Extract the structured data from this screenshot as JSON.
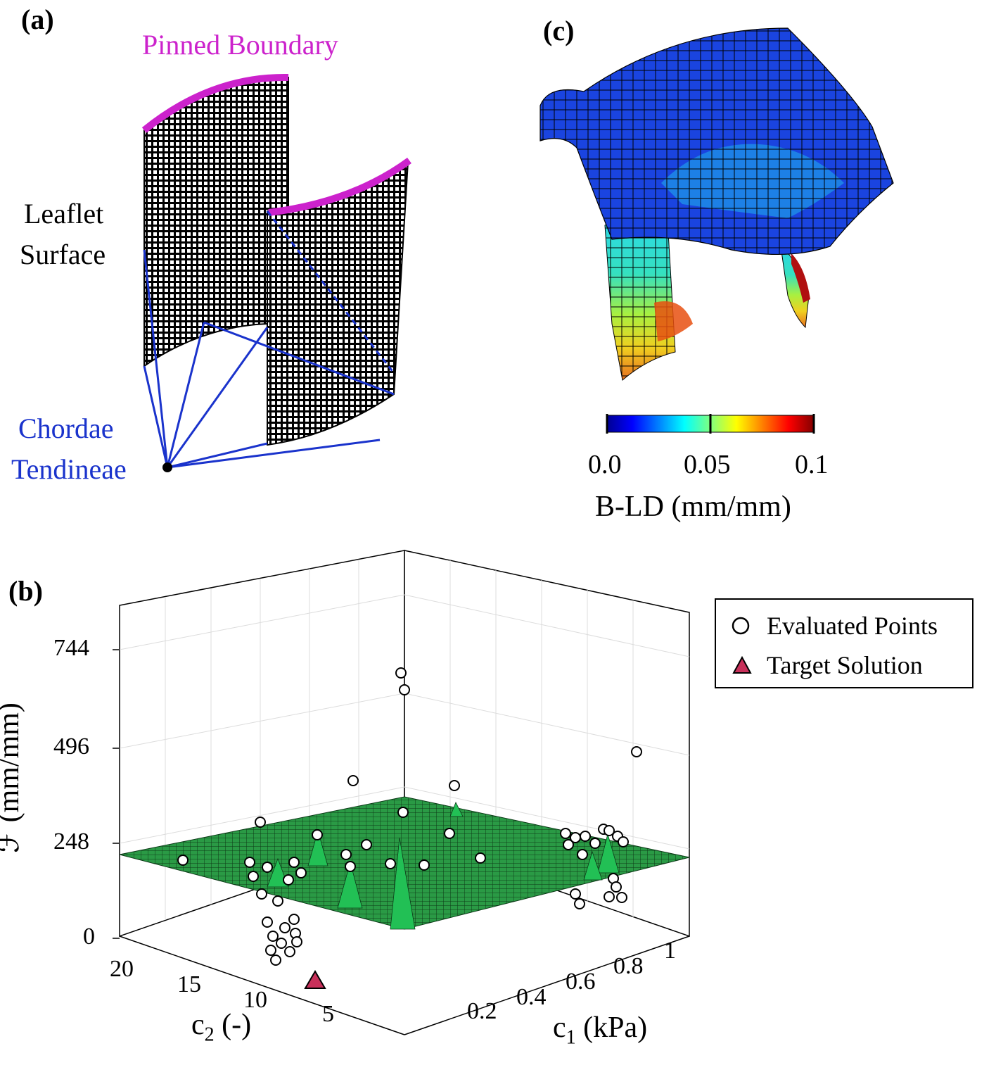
{
  "panel_a": {
    "label": "(a)",
    "pinned_label": "Pinned Boundary",
    "leaflet_label_line1": "Leaflet",
    "leaflet_label_line2": "Surface",
    "chordae_label_line1": "Chordae",
    "chordae_label_line2": "Tendineae",
    "colors": {
      "pinned": "#cc22cc",
      "chordae": "#1a33cc",
      "mesh": "#000000"
    }
  },
  "panel_c": {
    "label": "(c)",
    "colorbar": {
      "ticks": [
        "0.0",
        "0.05",
        "0.1"
      ],
      "title": "B-LD (mm/mm)",
      "colormap": "jet"
    }
  },
  "panel_b": {
    "label": "(b)",
    "legend": {
      "evaluated": "Evaluated Points",
      "target": "Target Solution"
    },
    "z_ticks": [
      "0",
      "248",
      "496",
      "744"
    ],
    "z_label": "ℱ (mm/mm)",
    "c2_ticks": [
      "20",
      "15",
      "10",
      "5"
    ],
    "c1_ticks": [
      "0.2",
      "0.4",
      "0.6",
      "0.8",
      "1"
    ],
    "c2_label_main": "c",
    "c2_label_sub": "2",
    "c2_label_rest": " (-)",
    "c1_label_main": "c",
    "c1_label_sub": "1",
    "c1_label_rest": " (kPa)",
    "colors": {
      "surface": "#1f8a3a",
      "target": "#c8305a"
    }
  }
}
